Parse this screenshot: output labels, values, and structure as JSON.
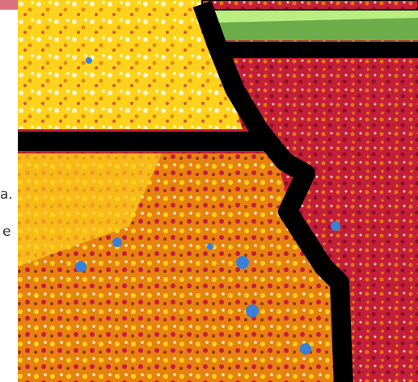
{
  "side_text": {
    "line_1": "a.",
    "line_2": "e"
  }
}
